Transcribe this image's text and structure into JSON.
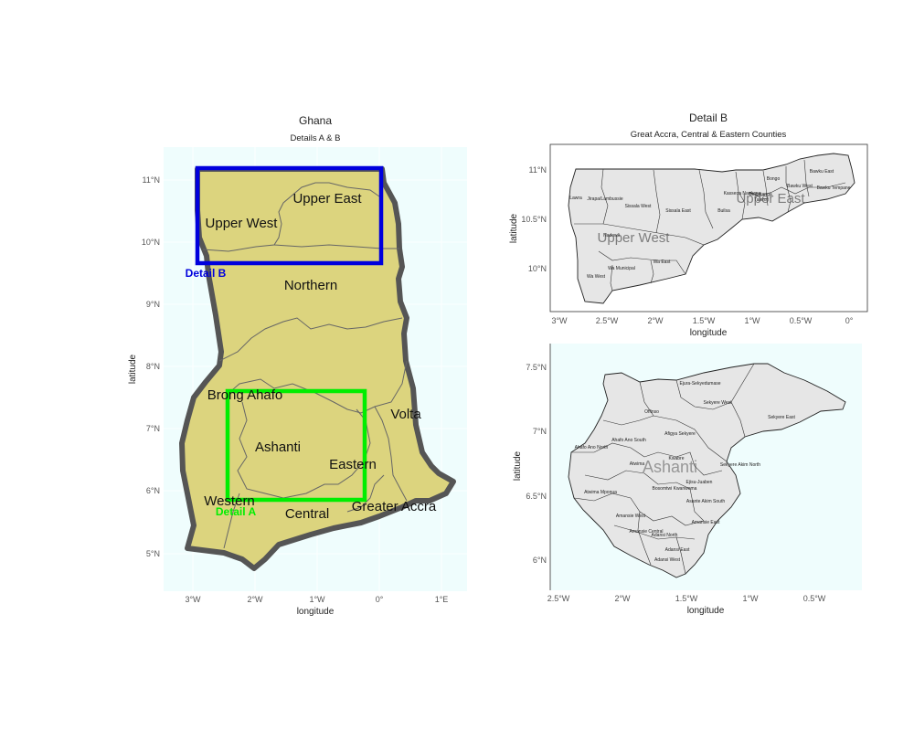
{
  "main_map": {
    "title": "Ghana",
    "subtitle": "Details A & B",
    "x_ticks": [
      "3°W",
      "2°W",
      "1°W",
      "0°",
      "1°E"
    ],
    "y_ticks": [
      "11°N",
      "10°N",
      "9°N",
      "8°N",
      "7°N",
      "6°N",
      "5°N"
    ],
    "xlabel": "longitude",
    "ylabel": "latitude",
    "regions": [
      "Upper East",
      "Upper West",
      "Northern",
      "Brong Ahafo",
      "Volta",
      "Ashanti",
      "Eastern",
      "Western",
      "Central",
      "Greater Accra"
    ],
    "detail_a_label": "Detail A",
    "detail_b_label": "Detail B",
    "colors": {
      "fill": "#dcd47e",
      "border": "#555555",
      "panel": "#effdfd",
      "detail_a": "#00ee00",
      "detail_b": "#0000dd"
    }
  },
  "detail_b": {
    "title": "Detail B",
    "subtitle": "Great Accra, Central & Eastern Counties",
    "x_ticks": [
      "3°W",
      "2.5°W",
      "2°W",
      "1.5°W",
      "1°W",
      "0.5°W",
      "0°"
    ],
    "y_ticks": [
      "11°N",
      "10.5°N",
      "10°N"
    ],
    "xlabel": "longitude",
    "ylabel": "latitude",
    "big_labels": [
      "Upper West",
      "Upper East"
    ],
    "districts": [
      "Lawra",
      "Jirapa/Lambussie",
      "Sissala West",
      "Sissala East",
      "Builsa",
      "Kassena Nankana",
      "Bongo",
      "Bawku East",
      "Bawku West",
      "Bawku Tempane",
      "Nadowli",
      "Wa Municipal",
      "Wa East",
      "Wa West",
      "Talensi",
      "Bolgatanga"
    ],
    "colors": {
      "fill": "#e6e6e6"
    }
  },
  "detail_a": {
    "x_ticks": [
      "2.5°W",
      "2°W",
      "1.5°W",
      "1°W",
      "0.5°W"
    ],
    "y_ticks": [
      "7.5°N",
      "7°N",
      "6.5°N",
      "6°N"
    ],
    "xlabel": "longitude",
    "ylabel": "latitude",
    "big_label": "Ashanti",
    "districts": [
      "Ejura-Sekyedumase",
      "Sekyere West",
      "Sekyere East",
      "Offinso",
      "Afigya Sekyere",
      "Atwima",
      "Ahafo Ano South",
      "Ahafo Ano North",
      "Kwabre",
      "Ejisu-Juaben",
      "Sekyere Akim North",
      "Asante Akim South",
      "Bosomtwi Kwanwoma",
      "Amansie West",
      "Amansie Central",
      "Atwima Mponua",
      "Amansie East",
      "Adansi North",
      "Adansi East",
      "Adansi West"
    ],
    "colors": {
      "fill": "#e6e6e6"
    }
  }
}
